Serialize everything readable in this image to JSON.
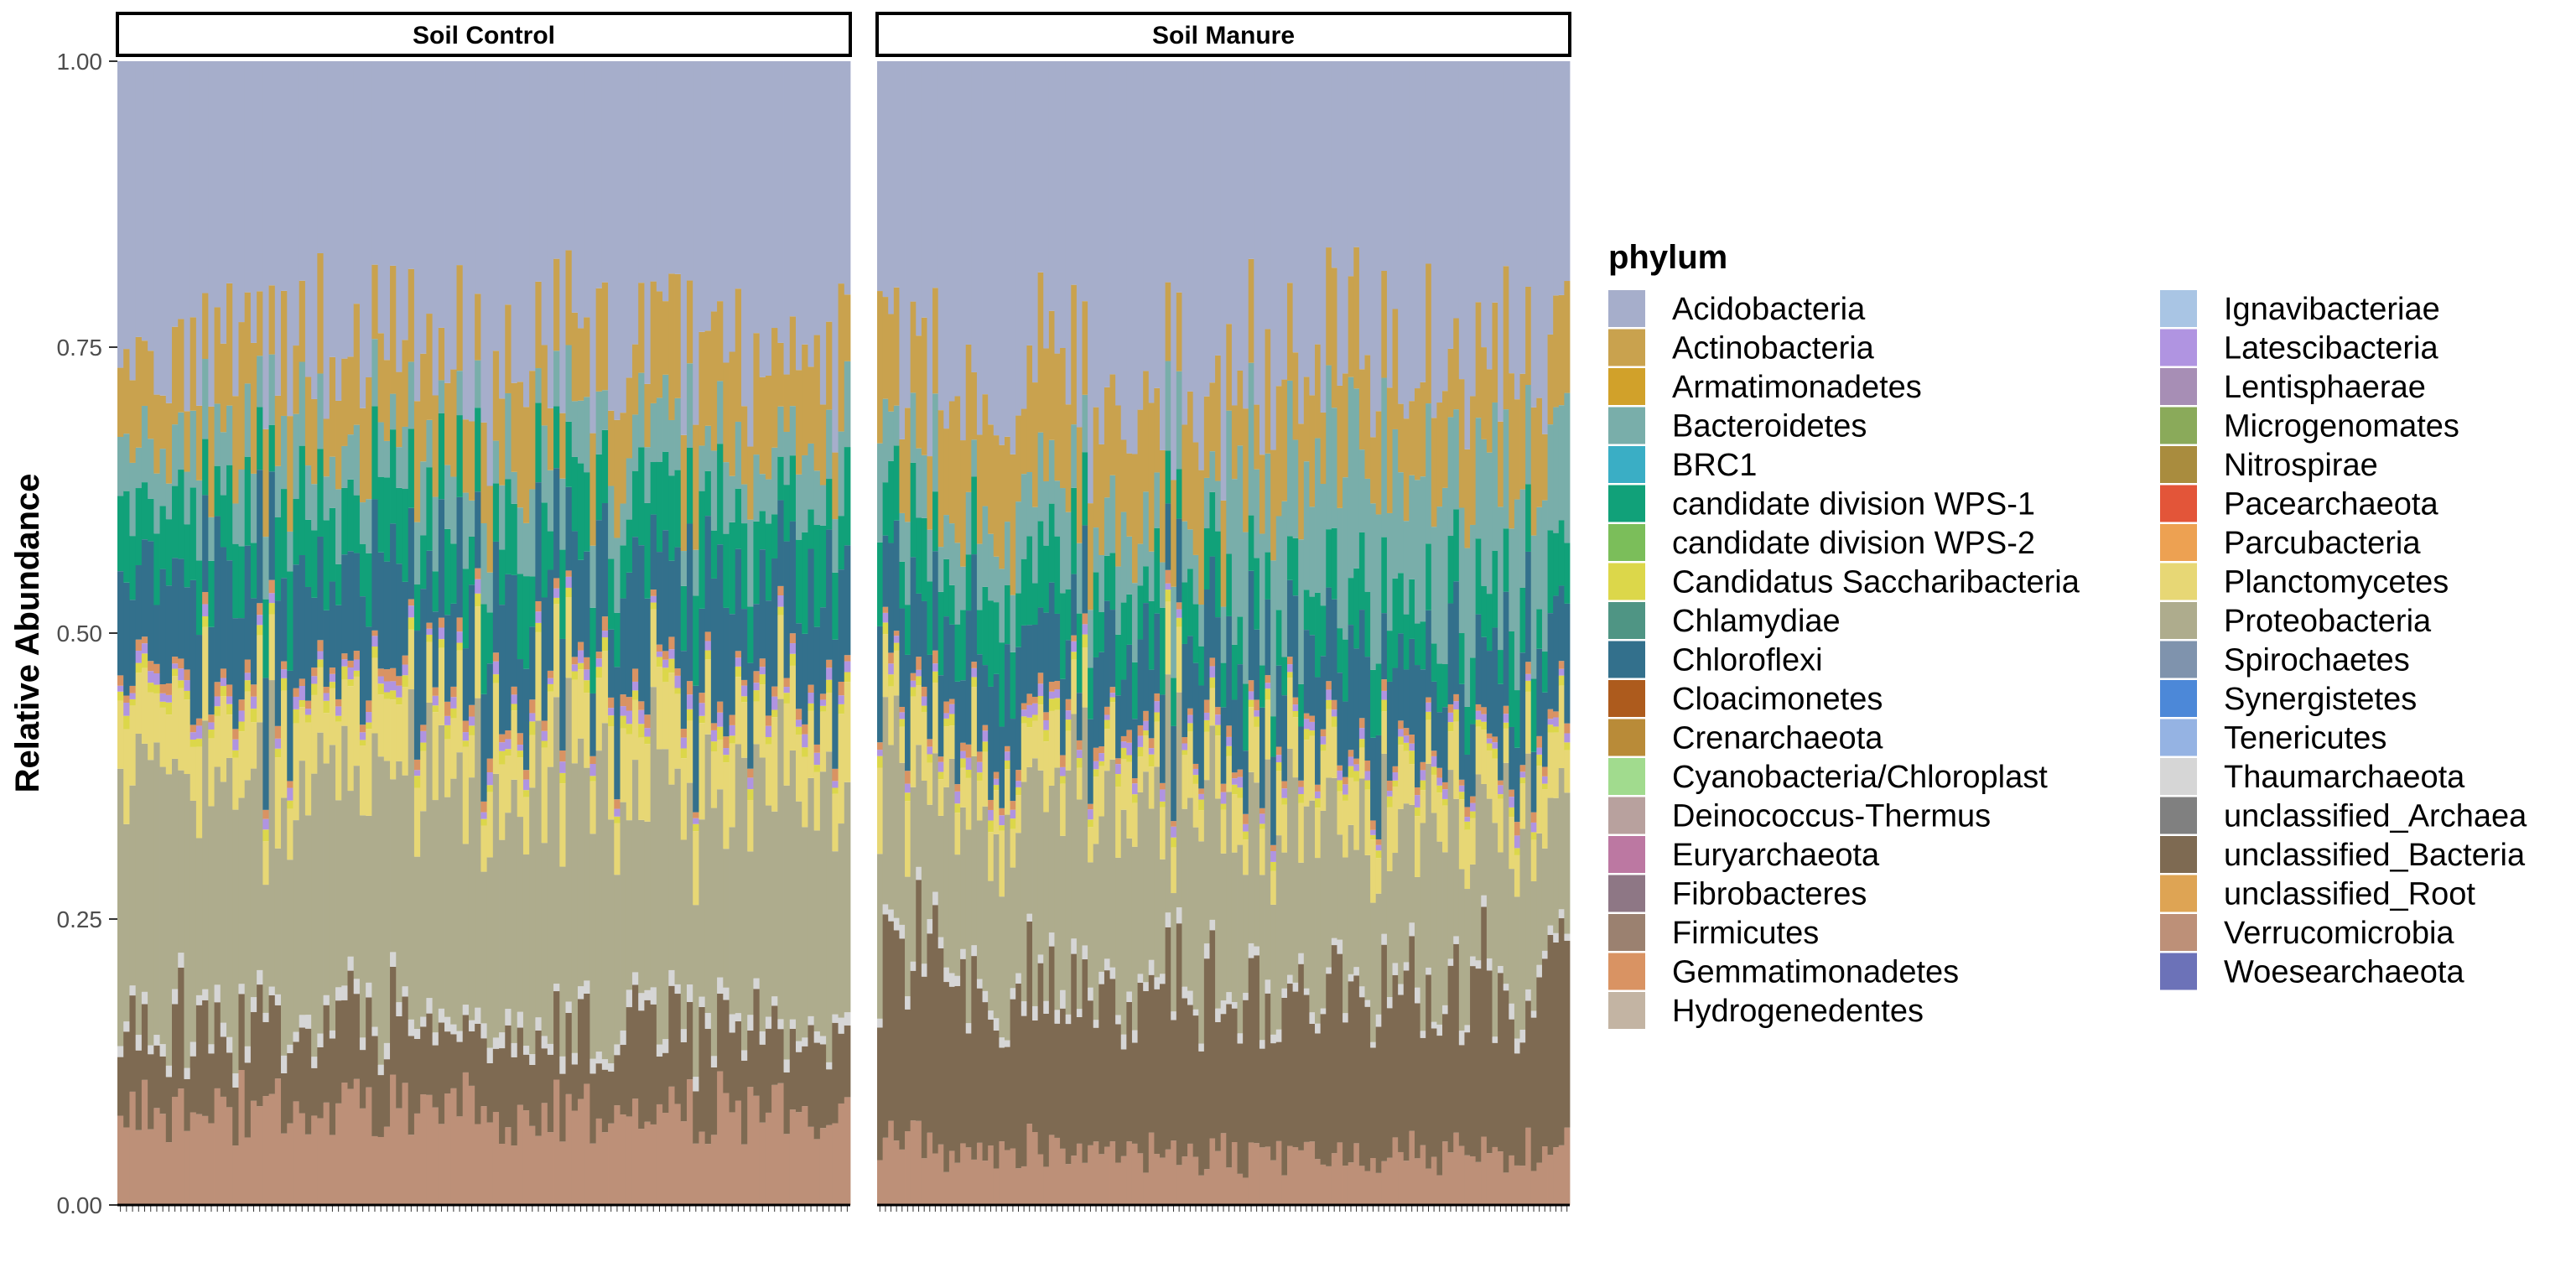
{
  "chart_data": {
    "type": "bar",
    "stacked": true,
    "facets": [
      "Soil Control",
      "Soil Manure"
    ],
    "ylabel": "Relative Abundance",
    "ylim": [
      0,
      1
    ],
    "yticks": [
      "0.00",
      "0.25",
      "0.50",
      "0.75",
      "1.00"
    ],
    "samples_per_facet": [
      121,
      125
    ],
    "legend": {
      "title": "phylum",
      "position": "right",
      "columns": 2,
      "entries": [
        {
          "name": "Acidobacteria",
          "color": "#a6aecb"
        },
        {
          "name": "Actinobacteria",
          "color": "#c9a24e"
        },
        {
          "name": "Armatimonadetes",
          "color": "#d1a12a"
        },
        {
          "name": "Bacteroidetes",
          "color": "#79aeaa"
        },
        {
          "name": "BRC1",
          "color": "#3aaec5"
        },
        {
          "name": "candidate division WPS-1",
          "color": "#11a179"
        },
        {
          "name": "candidate division WPS-2",
          "color": "#7bbe5a"
        },
        {
          "name": "Candidatus Saccharibacteria",
          "color": "#dcd74a"
        },
        {
          "name": "Chlamydiae",
          "color": "#4f9584"
        },
        {
          "name": "Chloroflexi",
          "color": "#33708c"
        },
        {
          "name": "Cloacimonetes",
          "color": "#ad5b1d"
        },
        {
          "name": "Crenarchaeota",
          "color": "#b98b38"
        },
        {
          "name": "Cyanobacteria/Chloroplast",
          "color": "#a1db8e"
        },
        {
          "name": "Deinococcus-Thermus",
          "color": "#b8a19e"
        },
        {
          "name": "Euryarchaeota",
          "color": "#bc78a2"
        },
        {
          "name": "Fibrobacteres",
          "color": "#8e7785"
        },
        {
          "name": "Firmicutes",
          "color": "#9b8170"
        },
        {
          "name": "Gemmatimonadetes",
          "color": "#d99363"
        },
        {
          "name": "Hydrogenedentes",
          "color": "#c3b4a3"
        },
        {
          "name": "Ignavibacteriae",
          "color": "#a9c5e4"
        },
        {
          "name": "Latescibacteria",
          "color": "#b094e1"
        },
        {
          "name": "Lentisphaerae",
          "color": "#a78eb5"
        },
        {
          "name": "Microgenomates",
          "color": "#8aaa5a"
        },
        {
          "name": "Nitrospirae",
          "color": "#a98c3e"
        },
        {
          "name": "Pacearchaeota",
          "color": "#e35539"
        },
        {
          "name": "Parcubacteria",
          "color": "#eda152"
        },
        {
          "name": "Planctomycetes",
          "color": "#e7d775"
        },
        {
          "name": "Proteobacteria",
          "color": "#aeac8d"
        },
        {
          "name": "Spirochaetes",
          "color": "#7f93ad"
        },
        {
          "name": "Synergistetes",
          "color": "#4c88d8"
        },
        {
          "name": "Tenericutes",
          "color": "#95b3e3"
        },
        {
          "name": "Thaumarchaeota",
          "color": "#d6d6d6"
        },
        {
          "name": "unclassified_Archaea",
          "color": "#808080"
        },
        {
          "name": "unclassified_Bacteria",
          "color": "#7e6a52"
        },
        {
          "name": "unclassified_Root",
          "color": "#dea454"
        },
        {
          "name": "Verrucomicrobia",
          "color": "#bd9078"
        },
        {
          "name": "Woesearchaeota",
          "color": "#6c72b8"
        }
      ]
    },
    "typical_composition": {
      "Soil Control": {
        "Verrucomicrobia": 0.08,
        "unclassified_Bacteria": 0.07,
        "Thaumarchaeota": 0.01,
        "Proteobacteria": 0.2,
        "Planctomycetes": 0.06,
        "candidate division WPS-1": 0.06,
        "Chloroflexi": 0.09,
        "Bacteroidetes": 0.05,
        "Actinobacteria": 0.08,
        "Acidobacteria": 0.25
      },
      "Soil Manure": {
        "Verrucomicrobia": 0.05,
        "unclassified_Bacteria": 0.15,
        "Thaumarchaeota": 0.01,
        "Proteobacteria": 0.16,
        "Planctomycetes": 0.05,
        "candidate division WPS-1": 0.06,
        "Chloroflexi": 0.08,
        "Bacteroidetes": 0.06,
        "Actinobacteria": 0.1,
        "Acidobacteria": 0.3
      }
    }
  }
}
